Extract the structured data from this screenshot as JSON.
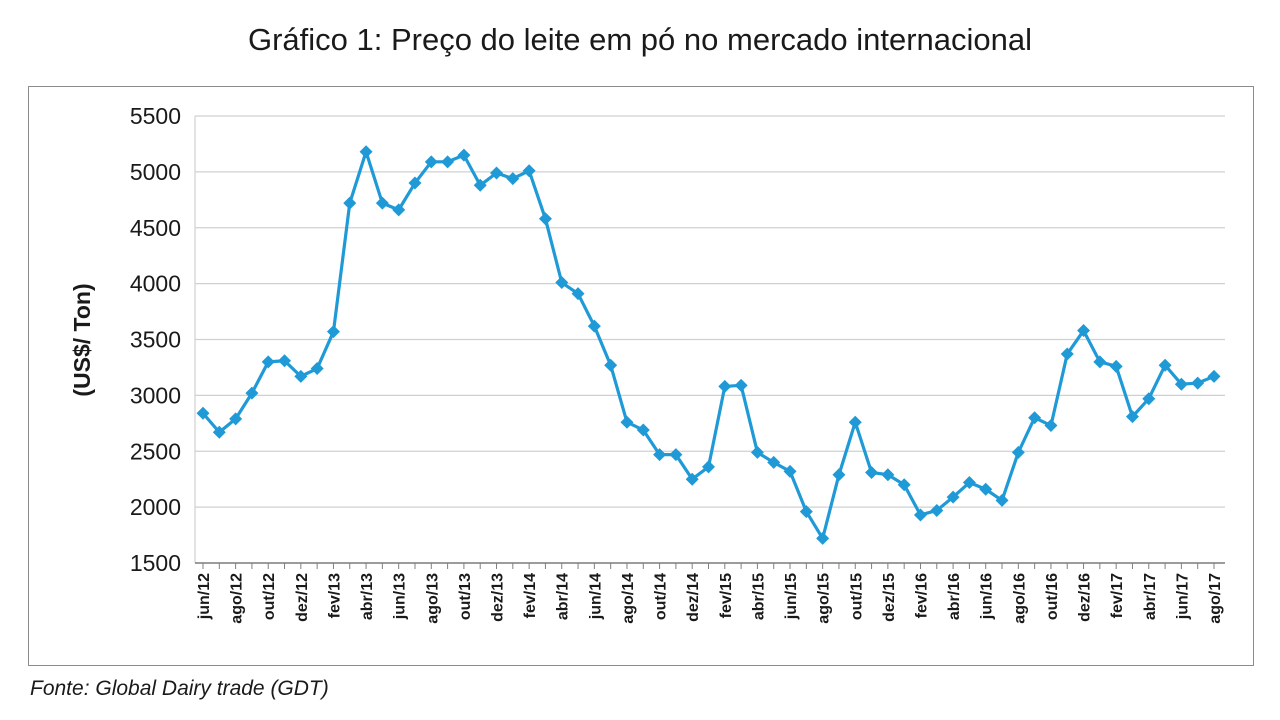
{
  "title": "Gráfico 1: Preço do leite em pó no mercado internacional",
  "source": "Fonte: Global Dairy trade (GDT)",
  "colors": {
    "line": "#1f9ad6",
    "grid": "#d0d0d0",
    "axis": "#7f7f7f"
  },
  "chart_data": {
    "type": "line",
    "title": "Gráfico 1: Preço do leite em pó no mercado internacional",
    "ylabel": "(US$/ Ton)",
    "xlabel": "",
    "ylim": [
      1500,
      5500
    ],
    "yticks": [
      1500,
      2000,
      2500,
      3000,
      3500,
      4000,
      4500,
      5000,
      5500
    ],
    "grid": true,
    "legend": "none",
    "xtick_labels": [
      "jun/12",
      "ago/12",
      "out/12",
      "dez/12",
      "fev/13",
      "abr/13",
      "jun/13",
      "ago/13",
      "out/13",
      "dez/13",
      "fev/14",
      "abr/14",
      "jun/14",
      "ago/14",
      "out/14",
      "dez/14",
      "fev/15",
      "abr/15",
      "jun/15",
      "ago/15",
      "out/15",
      "dez/15",
      "fev/16",
      "abr/16",
      "jun/16",
      "ago/16",
      "out/16",
      "dez/16",
      "fev/17",
      "abr/17",
      "jun/17",
      "ago/17"
    ],
    "series": [
      {
        "values": [
          2840,
          2670,
          2790,
          3020,
          3300,
          3310,
          3170,
          3240,
          3570,
          4720,
          5180,
          4720,
          4660,
          4900,
          5090,
          5090,
          5150,
          4880,
          4990,
          4940,
          5010,
          4580,
          4010,
          3910,
          3620,
          3270,
          2760,
          2690,
          2470,
          2470,
          2250,
          2360,
          3080,
          3090,
          2490,
          2400,
          2320,
          1960,
          1720,
          2290,
          2760,
          2310,
          2290,
          2200,
          1930,
          1970,
          2090,
          2220,
          2160,
          2060,
          2490,
          2800,
          2730,
          3370,
          3580,
          3300,
          3260,
          2810,
          2970,
          3270,
          3100,
          3110,
          3170
        ]
      }
    ]
  }
}
